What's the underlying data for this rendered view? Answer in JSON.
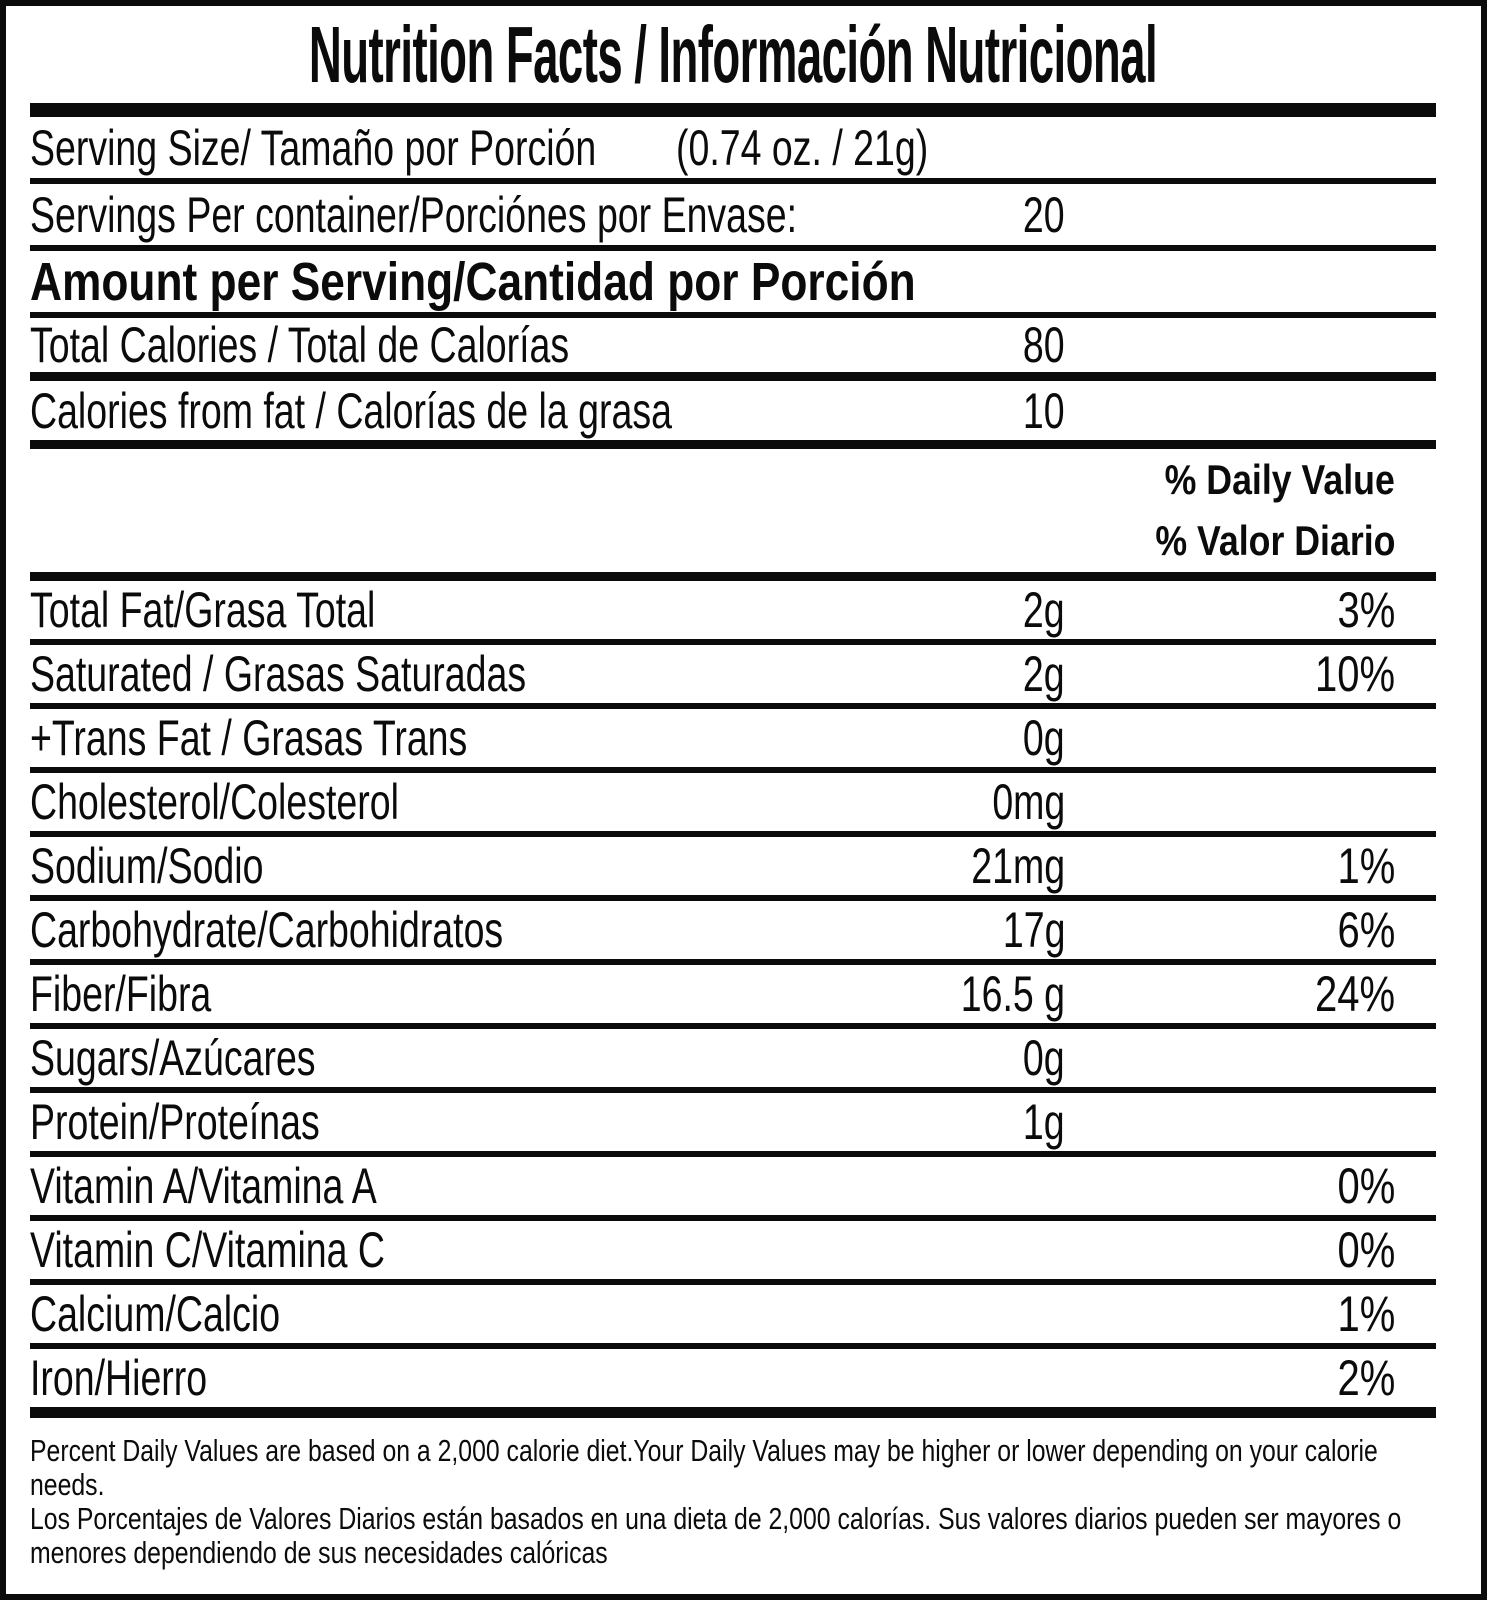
{
  "label": {
    "title": "Nutrition Facts / Información Nutricional",
    "serving": {
      "size_label": "Serving Size/ Tamaño por Porción",
      "size_value": "(0.74 oz. / 21g)",
      "per_container_label": "Servings Per container/Porciónes por Envase:",
      "per_container_value": "20"
    },
    "amount_per_serving_header": "Amount per Serving/Cantidad por Porción",
    "calories": [
      {
        "label": "Total Calories / Total de Calorías",
        "amount": "80"
      },
      {
        "label": "Calories from fat / Calorías de la grasa",
        "amount": "10"
      }
    ],
    "daily_value_header_en": "% Daily Value",
    "daily_value_header_es": "% Valor Diario",
    "nutrients": [
      {
        "label": "Total Fat/Grasa Total",
        "amount": "2g",
        "dv": "3%"
      },
      {
        "label": "Saturated / Grasas Saturadas",
        "amount": "2g",
        "dv": "10%"
      },
      {
        "label": "+Trans Fat / Grasas Trans",
        "amount": "0g",
        "dv": ""
      },
      {
        "label": "Cholesterol/Colesterol",
        "amount": "0mg",
        "dv": ""
      },
      {
        "label": "Sodium/Sodio",
        "amount": "21mg",
        "dv": "1%"
      },
      {
        "label": "Carbohydrate/Carbohidratos",
        "amount": "17g",
        "dv": "6%"
      },
      {
        "label": "Fiber/Fibra",
        "amount": "16.5 g",
        "dv": "24%"
      },
      {
        "label": "Sugars/Azúcares",
        "amount": "0g",
        "dv": ""
      },
      {
        "label": "Protein/Proteínas",
        "amount": "1g",
        "dv": ""
      },
      {
        "label": "Vitamin A/Vitamina A",
        "amount": "",
        "dv": "0%"
      },
      {
        "label": "Vitamin C/Vitamina C",
        "amount": "",
        "dv": "0%"
      },
      {
        "label": "Calcium/Calcio",
        "amount": "",
        "dv": "1%"
      },
      {
        "label": "Iron/Hierro",
        "amount": "",
        "dv": "2%"
      }
    ],
    "footnote": {
      "en": "Percent Daily Values are based on a 2,000 calorie diet.Your Daily Values may be higher or lower depending on your calorie needs.",
      "es": "Los Porcentajes de Valores Diarios están basados en una dieta de 2,000 calorías. Sus valores diarios pueden ser mayores o menores dependiendo de sus necesidades calóricas"
    },
    "colors": {
      "ink": "#0b0b0b",
      "background": "#ffffff"
    }
  }
}
